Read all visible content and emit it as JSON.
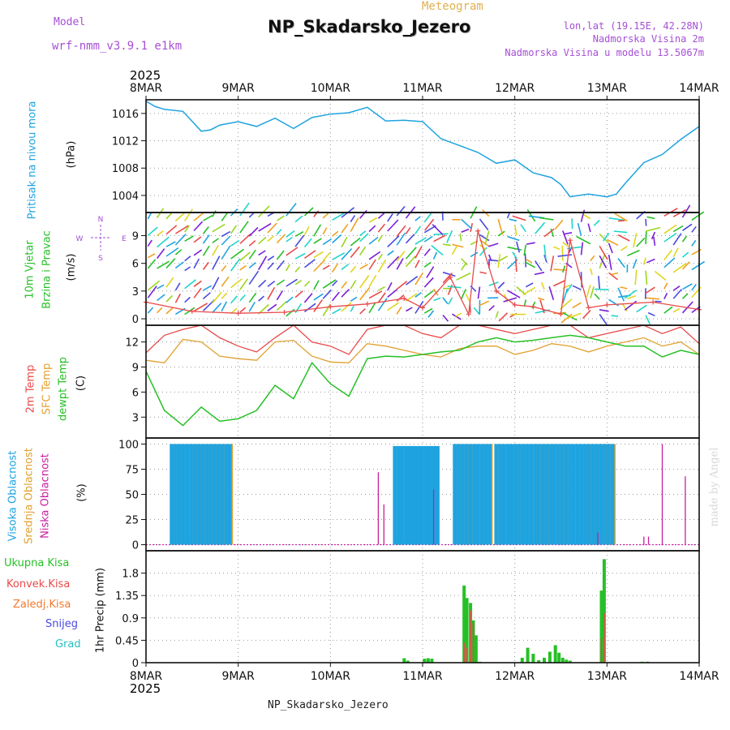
{
  "header": {
    "model_label": "Model",
    "model_name": "wrf-nmm_v3.9.1 e1km",
    "title": "NP_Skadarsko_Jezero",
    "subtitle": "Meteogram",
    "lonlat": "lon,lat (19.15E, 42.28N)",
    "elevation": "Nadmorska Visina 2m",
    "model_elevation": "Nadmorska Visina u modelu 13.5067m",
    "year_top": "2025",
    "year_bottom": "2025",
    "footer": "NP_Skadarsko_Jezero",
    "credit": "made by Angel"
  },
  "colors": {
    "pressure": "#1fa3e0",
    "temp2m": "#e84a4a",
    "sfc": "#e0a030",
    "dewpt": "#26c026",
    "high_cloud": "#1fa3e0",
    "mid_cloud": "#e0a030",
    "low_cloud": "#c81fa0",
    "wind_label": "#26c026",
    "compass": "#a64fd6",
    "precip_total": "#26c026",
    "precip_conv": "#e84a4a",
    "precip_frozen": "#f07a30",
    "precip_snow": "#4a4ae0",
    "precip_grad": "#26c0c0"
  },
  "x_axis": {
    "ticks": [
      "8MAR",
      "9MAR",
      "10MAR",
      "11MAR",
      "12MAR",
      "13MAR",
      "14MAR"
    ],
    "start": "2025-03-08 00:00",
    "end": "2025-03-14 00:00"
  },
  "chart_data": [
    {
      "id": "pressure",
      "type": "line",
      "ylabel_lines": [
        "Pritisak na nivou mora",
        "(hPa)"
      ],
      "yticks": [
        1004,
        1008,
        1012,
        1016
      ],
      "ylim": [
        1001.5,
        1018
      ],
      "x": [
        0,
        0.1,
        0.2,
        0.4,
        0.6,
        0.7,
        0.8,
        1.0,
        1.2,
        1.4,
        1.6,
        1.8,
        2.0,
        2.2,
        2.4,
        2.6,
        2.8,
        3.0,
        3.2,
        3.4,
        3.6,
        3.8,
        4.0,
        4.2,
        4.4,
        4.5,
        4.6,
        4.7,
        4.8,
        5.0,
        5.1,
        5.2,
        5.4,
        5.5,
        5.6,
        5.8,
        6.0
      ],
      "series": [
        {
          "name": "",
          "values": [
            1017.8,
            1017.0,
            1016.6,
            1016.3,
            1013.4,
            1013.6,
            1014.3,
            1014.8,
            1014.1,
            1015.3,
            1013.8,
            1015.4,
            1015.9,
            1016.1,
            1016.9,
            1014.9,
            1015.0,
            1014.8,
            1012.3,
            1011.3,
            1010.3,
            1008.7,
            1009.2,
            1007.3,
            1006.6,
            1005.6,
            1003.8,
            1004.0,
            1004.2,
            1003.8,
            1004.2,
            1005.8,
            1008.8,
            1009.4,
            1010.0,
            1012.2,
            1014.1
          ]
        }
      ]
    },
    {
      "id": "wind",
      "type": "scatter",
      "ylabel_lines": [
        "10m Vjetar",
        "Brzina i Pravac",
        "(m/s)"
      ],
      "compass": {
        "n": "N",
        "s": "S",
        "w": "W",
        "e": "E"
      },
      "yticks": [
        0,
        3,
        6,
        9
      ],
      "ylim": [
        -0.7,
        11.5
      ],
      "barb_levels": [
        0.6,
        2.0,
        3.4,
        5.3,
        6.6,
        8.1,
        9.2,
        10.8
      ],
      "x": [
        0.0,
        0.5,
        1.0,
        1.5,
        2.0,
        2.4,
        2.8,
        3.0,
        3.3,
        3.5,
        3.6,
        3.8,
        4.0,
        4.2,
        4.5,
        4.6,
        4.8,
        5.0,
        5.5,
        6.0
      ],
      "series": [
        {
          "name": "",
          "values": [
            1.8,
            0.8,
            0.6,
            0.7,
            1.3,
            1.6,
            2.2,
            1.2,
            4.5,
            0.5,
            9.5,
            3.0,
            1.5,
            1.3,
            0.5,
            8.5,
            1.2,
            1.5,
            1.8,
            1.0
          ]
        }
      ]
    },
    {
      "id": "temperature",
      "type": "line",
      "ylabel_lines": [
        "2m Temp",
        "SFC Temp",
        "dewpt Temp",
        "(C)"
      ],
      "yticks": [
        3,
        6,
        9,
        12
      ],
      "ylim": [
        0.5,
        14
      ],
      "x": [
        0,
        0.2,
        0.4,
        0.6,
        0.8,
        1.0,
        1.2,
        1.4,
        1.6,
        1.8,
        2.0,
        2.2,
        2.4,
        2.6,
        2.8,
        3.0,
        3.2,
        3.4,
        3.6,
        3.8,
        4.0,
        4.2,
        4.4,
        4.6,
        4.8,
        5.0,
        5.2,
        5.4,
        5.6,
        5.8,
        6.0
      ],
      "series": [
        {
          "name": "2m Temp",
          "values": [
            10.7,
            12.8,
            13.5,
            14.0,
            12.5,
            11.5,
            10.8,
            12.5,
            14.0,
            12.0,
            11.5,
            10.5,
            13.5,
            14.0,
            14.0,
            13.0,
            12.5,
            14.0,
            14.0,
            13.5,
            13.0,
            13.5,
            14.0,
            14.0,
            12.5,
            13.0,
            13.5,
            14.0,
            13.0,
            13.8,
            11.8
          ]
        },
        {
          "name": "SFC Temp",
          "values": [
            9.8,
            9.5,
            12.3,
            12.0,
            10.3,
            10.0,
            9.8,
            12.0,
            12.2,
            10.3,
            9.6,
            9.5,
            11.8,
            11.5,
            11.0,
            10.5,
            10.2,
            11.2,
            11.5,
            11.5,
            10.5,
            11.0,
            11.8,
            11.5,
            10.8,
            11.5,
            12.0,
            12.5,
            11.5,
            12.0,
            10.5
          ]
        },
        {
          "name": "dewpt Temp",
          "values": [
            8.5,
            3.8,
            2.0,
            4.2,
            2.5,
            2.8,
            3.8,
            6.8,
            5.2,
            9.5,
            7.0,
            5.5,
            10.0,
            10.3,
            10.2,
            10.5,
            10.8,
            11.0,
            12.0,
            12.5,
            12.0,
            12.2,
            12.5,
            12.8,
            12.5,
            12.0,
            11.5,
            11.5,
            10.2,
            11.0,
            10.5
          ]
        }
      ]
    },
    {
      "id": "cloud",
      "type": "bar",
      "ylabel_lines": [
        "Visoka Oblacnost",
        "Srednja Oblacnost",
        "Niska Oblacnost",
        "(%)"
      ],
      "yticks": [
        0,
        25,
        50,
        75,
        100
      ],
      "ylim": [
        -6,
        106
      ],
      "bands": [
        {
          "from": 0.28,
          "to": 0.93,
          "high": 100,
          "mid": 100
        },
        {
          "from": 2.7,
          "to": 3.2,
          "high": 98,
          "mid": 0
        },
        {
          "from": 3.35,
          "to": 3.75,
          "high": 100,
          "mid": 100
        },
        {
          "from": 3.8,
          "to": 5.07,
          "high": 100,
          "mid": 100
        }
      ],
      "low_spikes": [
        [
          2.52,
          72
        ],
        [
          2.58,
          40
        ],
        [
          3.12,
          55
        ],
        [
          4.9,
          12
        ],
        [
          5.4,
          8
        ],
        [
          5.45,
          8
        ],
        [
          5.6,
          100
        ],
        [
          5.85,
          68
        ]
      ]
    },
    {
      "id": "precip",
      "type": "bar",
      "ylabel_lines": [
        "1hr Precip (mm)"
      ],
      "legend": [
        "Ukupna Kisa",
        "Konvek.Kisa",
        "Zaledj.Kisa",
        "Snijeg",
        "Grad"
      ],
      "yticks": [
        0,
        0.45,
        0.9,
        1.35,
        1.8
      ],
      "ylim": [
        0,
        2.25
      ],
      "x": [
        2.8,
        2.84,
        3.02,
        3.06,
        3.1,
        3.45,
        3.48,
        3.52,
        3.55,
        3.58,
        3.62,
        4.08,
        4.14,
        4.2,
        4.26,
        4.32,
        4.38,
        4.44,
        4.48,
        4.52,
        4.56,
        4.6,
        4.94,
        4.97,
        5.38,
        5.44
      ],
      "series": [
        {
          "name": "Ukupna Kisa",
          "values": [
            0.09,
            0.04,
            0.08,
            0.09,
            0.08,
            1.55,
            1.3,
            1.2,
            0.85,
            0.55,
            0.02,
            0.1,
            0.3,
            0.18,
            0.05,
            0.1,
            0.22,
            0.35,
            0.2,
            0.1,
            0.06,
            0.04,
            1.45,
            2.08,
            0.02,
            0.02
          ]
        },
        {
          "name": "Konvek.Kisa",
          "values": [
            0,
            0,
            0,
            0,
            0,
            0.4,
            0.3,
            1.05,
            0.8,
            0,
            0,
            0,
            0,
            0,
            0,
            0,
            0,
            0,
            0,
            0,
            0,
            0,
            0.5,
            1.0,
            0,
            0
          ]
        }
      ]
    }
  ]
}
